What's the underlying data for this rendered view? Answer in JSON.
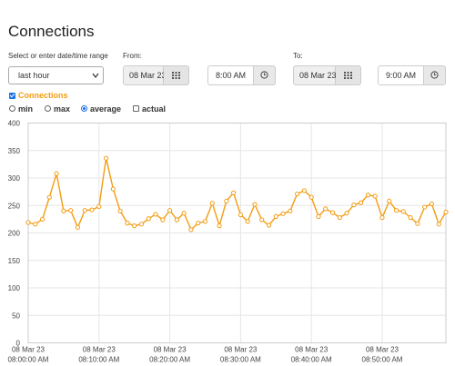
{
  "page_title": "Connections",
  "range": {
    "label": "Select or enter date/time range",
    "selected": "last hour"
  },
  "from": {
    "label": "From:",
    "date": "08 Mar 23",
    "time": "8:00 AM"
  },
  "to": {
    "label": "To:",
    "date": "08 Mar 23",
    "time": "9:00 AM"
  },
  "series_toggle": {
    "label": "Connections",
    "checked": true
  },
  "options": [
    {
      "label": "min",
      "kind": "radio",
      "checked": false
    },
    {
      "label": "max",
      "kind": "radio",
      "checked": false
    },
    {
      "label": "average",
      "kind": "radio",
      "checked": true
    },
    {
      "label": "actual",
      "kind": "checkbox",
      "checked": false
    }
  ],
  "colors": {
    "series": "#f39c12",
    "accent": "#1a73e8",
    "grid": "#e6e6e6",
    "axis": "#999999"
  },
  "icons": {
    "calendar": "calendar-grid-icon",
    "clock": "clock-icon",
    "dropdown": "chevron-down-icon"
  },
  "chart_data": {
    "type": "line",
    "series": [
      {
        "name": "Connections",
        "values": [
          219,
          216,
          225,
          265,
          308,
          240,
          241,
          210,
          241,
          242,
          248,
          336,
          280,
          240,
          218,
          213,
          216,
          226,
          234,
          224,
          241,
          224,
          236,
          206,
          218,
          221,
          254,
          213,
          258,
          273,
          233,
          221,
          252,
          224,
          214,
          230,
          235,
          240,
          271,
          277,
          265,
          230,
          244,
          237,
          228,
          236,
          251,
          255,
          269,
          267,
          228,
          258,
          241,
          239,
          228,
          217,
          247,
          253,
          216,
          238
        ]
      }
    ],
    "x_tick_labels": [
      {
        "date": "08 Mar 23",
        "time": "08:00:00 AM"
      },
      {
        "date": "08 Mar 23",
        "time": "08:10:00 AM"
      },
      {
        "date": "08 Mar 23",
        "time": "08:20:00 AM"
      },
      {
        "date": "08 Mar 23",
        "time": "08:30:00 AM"
      },
      {
        "date": "08 Mar 23",
        "time": "08:40:00 AM"
      },
      {
        "date": "08 Mar 23",
        "time": "08:50:00 AM"
      }
    ],
    "ylim": [
      0,
      400
    ],
    "y_ticks": [
      0,
      50,
      100,
      150,
      200,
      250,
      300,
      350,
      400
    ],
    "grid": true,
    "legend": "none"
  }
}
